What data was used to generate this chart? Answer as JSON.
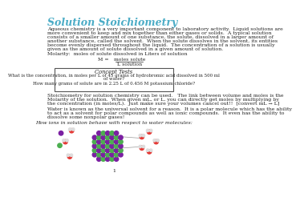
{
  "title": "Solution Stoichiometry",
  "title_color": "#4BACC6",
  "title_fontsize": 9,
  "body_fontsize": 4.5,
  "small_fontsize": 4.0,
  "paragraph1": "Aqueous chemistry is a very important component to laboratory activity.  Liquid solutions are\nmore convenient to keep and mix together than either gases or solids.  A typical solution\nconsists of a smaller amount of one substance, the solute, dissolved in a larger amount of\nanother substance, called the solvent.  When the solute dissolves in the solvent, its entities\nbecome evenly dispersed throughout the liquid.  The concentration of a solution is usually\ngiven as the amount of solute dissolved in a given amount of solution.",
  "molarity_label": "Molarity:  moles of solute dissolved in Liters of solution",
  "formula_numerator": "moles solute",
  "formula_denominator": "L solution",
  "concept_title": "Concept Tests",
  "concept_q1": "What is the concentration, in moles per L of 45 grams of hydrobromic acid dissolved in 500 ml\nof water?",
  "concept_q2": "How many grams of solute are in 2.25 L of 0.456 M potassium chloride?",
  "paragraph2": "Stoichiometry for solution chemistry can be used.   The link between volume and moles is the\nMolarity of the solution.  When given mL, or L, you can directly get moles by multiplying by\nthe concentration (in moles/L).  Just make sure your volumes cancel out!!  [convert mL → L]",
  "paragraph3": "Water is known as the universal solvent for a reason.  It is a polar molecule which has the ability\nto act as a solvent for polar compounds as well as ionic compounds.  It even has the ability to\ndissolve some nonpolar gases!",
  "ions_label": "How ions in solution behave with respect to water molecules:",
  "page_num": "1",
  "bg_color": "#FFFFFF"
}
